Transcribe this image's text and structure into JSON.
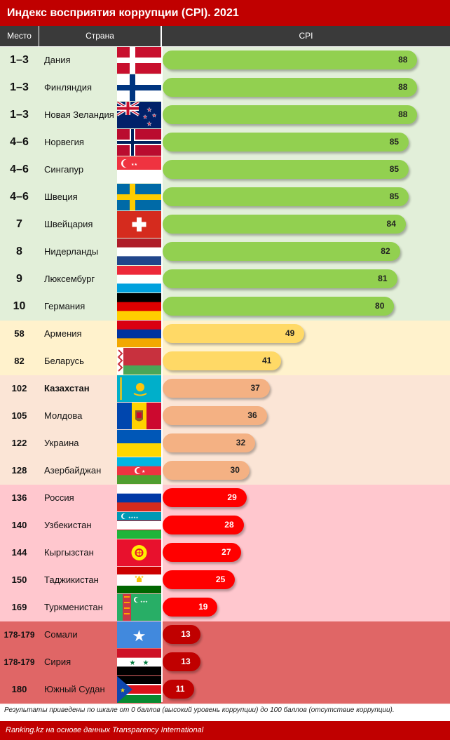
{
  "title": "Индекс восприятия коррупции (CPI). 2021",
  "headers": {
    "rank": "Место",
    "country": "Страна",
    "cpi": "CPI"
  },
  "colors": {
    "title_bg": "#c00000",
    "header_bg": "#3a3a3a",
    "tier_top": {
      "row": "#e2efd9",
      "bar": "#92d050"
    },
    "tier_yellow": {
      "row": "#fff2cc",
      "bar": "#ffd966"
    },
    "tier_orange": {
      "row": "#fbe5d6",
      "bar": "#f4b183"
    },
    "tier_pink": {
      "row": "#ffc7ce",
      "bar": "#ff0000"
    },
    "tier_dark": {
      "row": "#e06666",
      "bar": "#c00000"
    }
  },
  "chart_data": {
    "type": "bar",
    "title": "Индекс восприятия коррупции (CPI). 2021",
    "xlabel": "CPI",
    "xlim": [
      0,
      100
    ],
    "categories": [
      "Дания",
      "Финляндия",
      "Новая Зеландия",
      "Норвегия",
      "Сингапур",
      "Швеция",
      "Швейцария",
      "Нидерланды",
      "Люксембург",
      "Германия",
      "Армения",
      "Беларусь",
      "Казахстан",
      "Молдова",
      "Украина",
      "Азербайджан",
      "Россия",
      "Узбекистан",
      "Кыргызстан",
      "Таджикистан",
      "Туркменистан",
      "Сомали",
      "Сирия",
      "Южный Судан"
    ],
    "values": [
      88,
      88,
      88,
      85,
      85,
      85,
      84,
      82,
      81,
      80,
      49,
      41,
      37,
      36,
      32,
      30,
      29,
      28,
      27,
      25,
      19,
      13,
      13,
      11
    ]
  },
  "rows": [
    {
      "rank": "1–3",
      "country": "Дания",
      "cpi": 88,
      "tier": "top",
      "flag": "denmark-flag"
    },
    {
      "rank": "1–3",
      "country": "Финляндия",
      "cpi": 88,
      "tier": "top",
      "flag": "finland-flag"
    },
    {
      "rank": "1–3",
      "country": "Новая Зеландия",
      "cpi": 88,
      "tier": "top",
      "flag": "new-zealand-flag"
    },
    {
      "rank": "4–6",
      "country": "Норвегия",
      "cpi": 85,
      "tier": "top",
      "flag": "norway-flag"
    },
    {
      "rank": "4–6",
      "country": "Сингапур",
      "cpi": 85,
      "tier": "top",
      "flag": "singapore-flag"
    },
    {
      "rank": "4–6",
      "country": "Швеция",
      "cpi": 85,
      "tier": "top",
      "flag": "sweden-flag"
    },
    {
      "rank": "7",
      "country": "Швейцария",
      "cpi": 84,
      "tier": "top",
      "flag": "switzerland-flag"
    },
    {
      "rank": "8",
      "country": "Нидерланды",
      "cpi": 82,
      "tier": "top",
      "flag": "netherlands-flag"
    },
    {
      "rank": "9",
      "country": "Люксембург",
      "cpi": 81,
      "tier": "top",
      "flag": "luxembourg-flag"
    },
    {
      "rank": "10",
      "country": "Германия",
      "cpi": 80,
      "tier": "top",
      "flag": "germany-flag"
    },
    {
      "rank": "58",
      "country": "Армения",
      "cpi": 49,
      "tier": "yellow",
      "flag": "armenia-flag"
    },
    {
      "rank": "82",
      "country": "Беларусь",
      "cpi": 41,
      "tier": "yellow",
      "flag": "belarus-flag"
    },
    {
      "rank": "102",
      "country": "Казахстан",
      "cpi": 37,
      "tier": "orange",
      "flag": "kazakhstan-flag",
      "bold": true
    },
    {
      "rank": "105",
      "country": "Молдова",
      "cpi": 36,
      "tier": "orange",
      "flag": "moldova-flag"
    },
    {
      "rank": "122",
      "country": "Украина",
      "cpi": 32,
      "tier": "orange",
      "flag": "ukraine-flag"
    },
    {
      "rank": "128",
      "country": "Азербайджан",
      "cpi": 30,
      "tier": "orange",
      "flag": "azerbaijan-flag"
    },
    {
      "rank": "136",
      "country": "Россия",
      "cpi": 29,
      "tier": "pink",
      "flag": "russia-flag"
    },
    {
      "rank": "140",
      "country": "Узбекистан",
      "cpi": 28,
      "tier": "pink",
      "flag": "uzbekistan-flag"
    },
    {
      "rank": "144",
      "country": "Кыргызстан",
      "cpi": 27,
      "tier": "pink",
      "flag": "kyrgyzstan-flag"
    },
    {
      "rank": "150",
      "country": "Таджикистан",
      "cpi": 25,
      "tier": "pink",
      "flag": "tajikistan-flag"
    },
    {
      "rank": "169",
      "country": "Туркменистан",
      "cpi": 19,
      "tier": "pink",
      "flag": "turkmenistan-flag"
    },
    {
      "rank": "178-179",
      "country": "Сомали",
      "cpi": 13,
      "tier": "dark",
      "flag": "somalia-flag"
    },
    {
      "rank": "178-179",
      "country": "Сирия",
      "cpi": 13,
      "tier": "dark",
      "flag": "syria-flag"
    },
    {
      "rank": "180",
      "country": "Южный Судан",
      "cpi": 11,
      "tier": "dark",
      "flag": "south-sudan-flag"
    }
  ],
  "note": "Результаты приведены по шкале от 0 баллов (высокий уровень коррупции) до 100 баллов (отсутствие коррупции).",
  "source": "Ranking.kz на основе данных Transparency International"
}
